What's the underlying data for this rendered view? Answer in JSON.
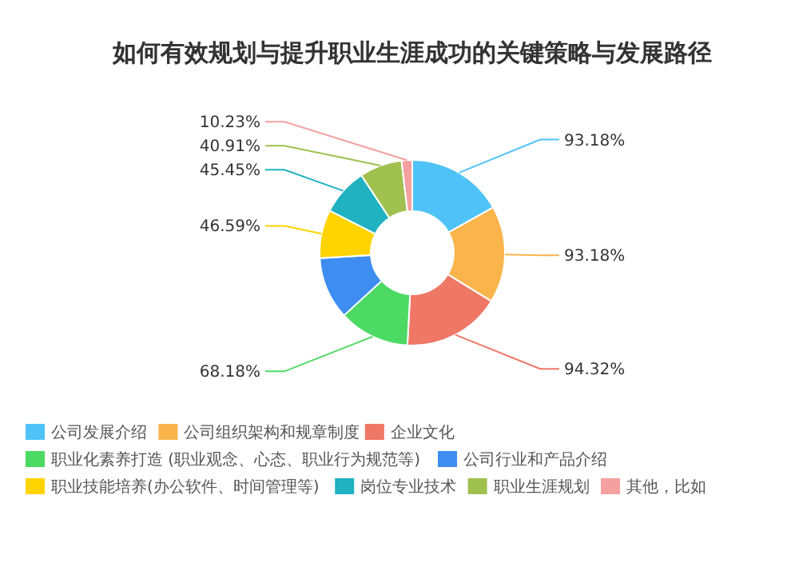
{
  "chart_data": {
    "type": "donut",
    "title": "如何有效规划与提升职业生涯成功的关键策略与发展路径",
    "categories": [
      "公司发展介绍",
      "公司组织架构和规章制度",
      "企业文化",
      "职业化素养打造 (职业观念、心态、职业行为规范等)",
      "公司行业和产品介绍",
      "职业技能培养(办公软件、时间管理等)",
      "岗位专业技术",
      "职业生涯规划",
      "其他，比如"
    ],
    "values": [
      93.18,
      93.18,
      94.32,
      68.18,
      60,
      46.59,
      45.45,
      40.91,
      10.23
    ],
    "value_labels": [
      "93.18%",
      "93.18%",
      "94.32%",
      "68.18%",
      null,
      "46.59%",
      "45.45%",
      "40.91%",
      "10.23%"
    ],
    "colors": [
      "#4fc3f7",
      "#f9b44b",
      "#ef7766",
      "#4cd964",
      "#3d8ef0",
      "#ffd400",
      "#20b2c0",
      "#a0c050",
      "#f4a0a0"
    ],
    "legend": "bottom"
  }
}
